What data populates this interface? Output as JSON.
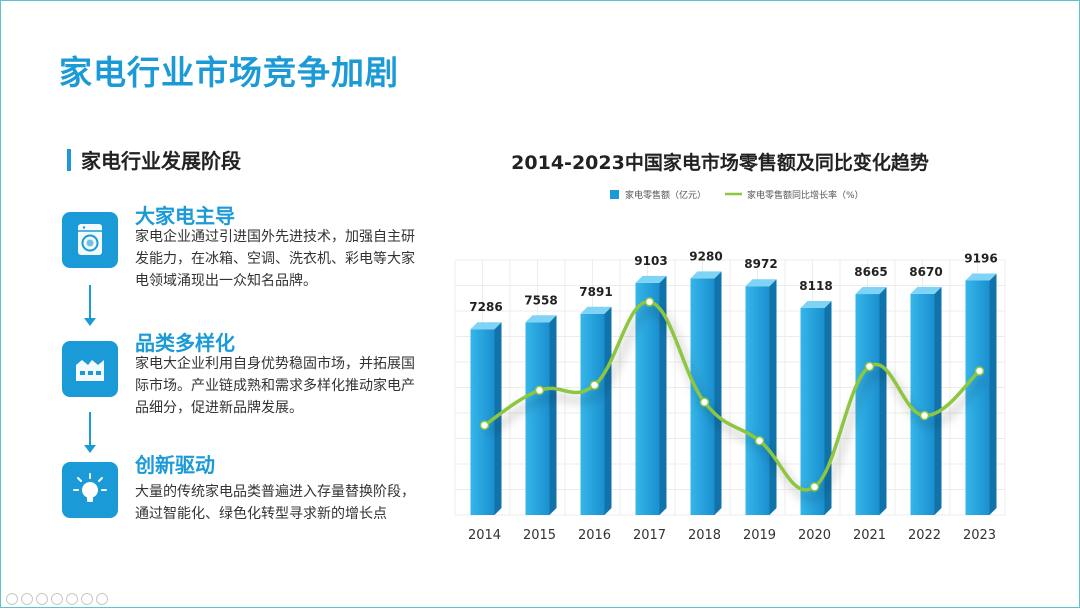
{
  "page": {
    "title": "家电行业市场竞争加剧"
  },
  "section": {
    "title": "家电行业发展阶段"
  },
  "stages": [
    {
      "icon": "washing-machine-icon",
      "title": "大家电主导",
      "desc": "家电企业通过引进国外先进技术，加强自主研发能力，在冰箱、空调、洗衣机、彩电等大家电领域涌现出一众知名品牌。"
    },
    {
      "icon": "factory-icon",
      "title": "品类多样化",
      "desc": "家电大企业利用自身优势稳固市场，并拓展国际市场。产业链成熟和需求多样化推动家电产品细分，促进新品牌发展。"
    },
    {
      "icon": "lightbulb-icon",
      "title": "创新驱动",
      "desc": "大量的传统家电品类普遍进入存量替换阶段，通过智能化、绿色化转型寻求新的增长点"
    }
  ],
  "colors": {
    "accent": "#1a9ad6",
    "line": "#8dc63f"
  },
  "chart_data": {
    "type": "bar",
    "title": "2014-2023中国家电市场零售额及同比变化趋势",
    "categories": [
      "2014",
      "2015",
      "2016",
      "2017",
      "2018",
      "2019",
      "2020",
      "2021",
      "2022",
      "2023"
    ],
    "series": [
      {
        "name": "家电零售额（亿元）",
        "type": "bar",
        "values": [
          7286,
          7558,
          7891,
          9103,
          9280,
          8972,
          8118,
          8665,
          8670,
          9196
        ]
      },
      {
        "name": "家电零售额同比增长率（%）",
        "type": "line",
        "values": [
          -1.2,
          3.5,
          4.2,
          15.4,
          1.9,
          -3.3,
          -9.5,
          6.7,
          0.1,
          6.1
        ]
      }
    ],
    "ylim": [
      0,
      10000
    ],
    "legend": "top",
    "grid": true
  }
}
